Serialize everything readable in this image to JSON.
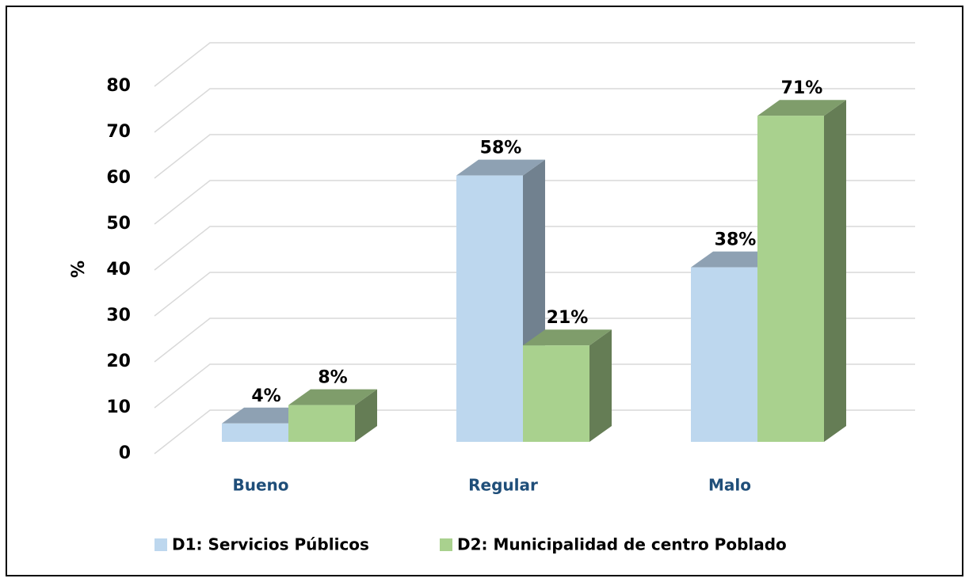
{
  "chart_data": {
    "type": "bar3d",
    "categories": [
      "Bueno",
      "Regular",
      "Malo"
    ],
    "ylabel": "%",
    "series": [
      {
        "name": "D1: Servicios Públicos",
        "color": "#bdd7ee",
        "values": [
          4,
          58,
          38
        ],
        "value_labels": [
          "4%",
          "58%",
          "38%"
        ]
      },
      {
        "name": "D2: Municipalidad de centro Poblado",
        "color": "#a9d18e",
        "values": [
          8,
          21,
          71
        ],
        "value_labels": [
          "8%",
          "21%",
          "71%"
        ]
      }
    ],
    "ylim": [
      0,
      80
    ],
    "yticks": [
      0,
      10,
      20,
      30,
      40,
      50,
      60,
      70,
      80
    ],
    "grid": true,
    "legend": "bottom"
  }
}
